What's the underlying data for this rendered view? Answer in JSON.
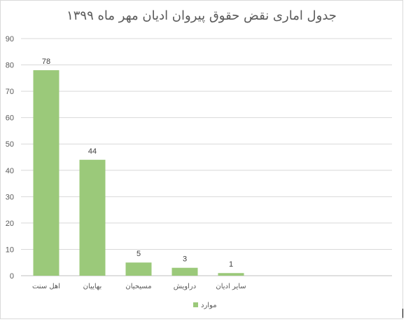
{
  "chart_data": {
    "type": "bar",
    "title": "جدول اماری نقض حقوق پیروان ادیان مهر ماه ۱۳۹۹",
    "categories": [
      "اهل سنت",
      "بهاییان",
      "مسیحیان",
      "دراویش",
      "سایر ادیان"
    ],
    "series": [
      {
        "name": "موارد",
        "values": [
          78,
          44,
          5,
          3,
          1
        ]
      }
    ],
    "ylim": [
      0,
      90
    ],
    "yticks": [
      0,
      10,
      20,
      30,
      40,
      50,
      60,
      70,
      80,
      90
    ],
    "grid": true,
    "legend": "bottom",
    "bar_color": "#9bc97a",
    "grid_color": "#d9d9d9",
    "axis_color": "#bfbfbf"
  }
}
